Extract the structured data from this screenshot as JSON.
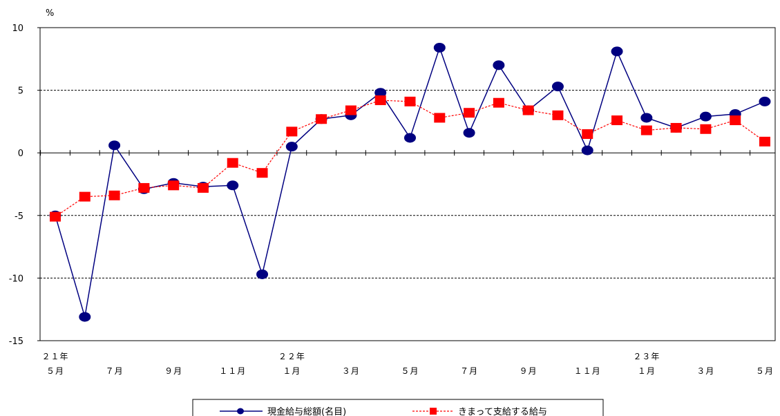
{
  "chart_data": {
    "type": "line",
    "y_unit": "%",
    "ylim": [
      -15,
      10
    ],
    "yticks": [
      "10",
      "5",
      "0",
      "-5",
      "-10",
      "-15"
    ],
    "grid": "horizontal dashed",
    "x_labels": [
      {
        "index": 0,
        "year": "２１年",
        "month": "５月"
      },
      {
        "index": 2,
        "month": "７月"
      },
      {
        "index": 4,
        "month": "９月"
      },
      {
        "index": 6,
        "month": "１１月"
      },
      {
        "index": 8,
        "year": "２２年",
        "month": "１月"
      },
      {
        "index": 10,
        "month": "３月"
      },
      {
        "index": 12,
        "month": "５月"
      },
      {
        "index": 14,
        "month": "７月"
      },
      {
        "index": 16,
        "month": "９月"
      },
      {
        "index": 18,
        "month": "１１月"
      },
      {
        "index": 20,
        "year": "２３年",
        "month": "１月"
      },
      {
        "index": 22,
        "month": "３月"
      },
      {
        "index": 24,
        "month": "５月"
      }
    ],
    "series": [
      {
        "name": "現金給与総額(名目)",
        "color": "#000080",
        "marker": "circle",
        "values": [
          -5.0,
          -13.1,
          0.6,
          -2.9,
          -2.4,
          -2.7,
          -2.6,
          -9.7,
          0.5,
          2.7,
          3.0,
          4.8,
          1.2,
          8.4,
          1.6,
          7.0,
          3.4,
          5.3,
          0.2,
          8.1,
          2.8,
          2.0,
          2.9,
          3.1,
          4.1
        ]
      },
      {
        "name": "きまって支給する給与",
        "color": "#ff0000",
        "marker": "square",
        "line_style": "dashed",
        "values": [
          -5.1,
          -3.5,
          -3.4,
          -2.8,
          -2.6,
          -2.8,
          -0.8,
          -1.6,
          1.7,
          2.7,
          3.4,
          4.2,
          4.1,
          2.8,
          3.2,
          4.0,
          3.4,
          3.0,
          1.5,
          2.6,
          1.8,
          2.0,
          1.9,
          2.6,
          0.9
        ]
      }
    ]
  }
}
